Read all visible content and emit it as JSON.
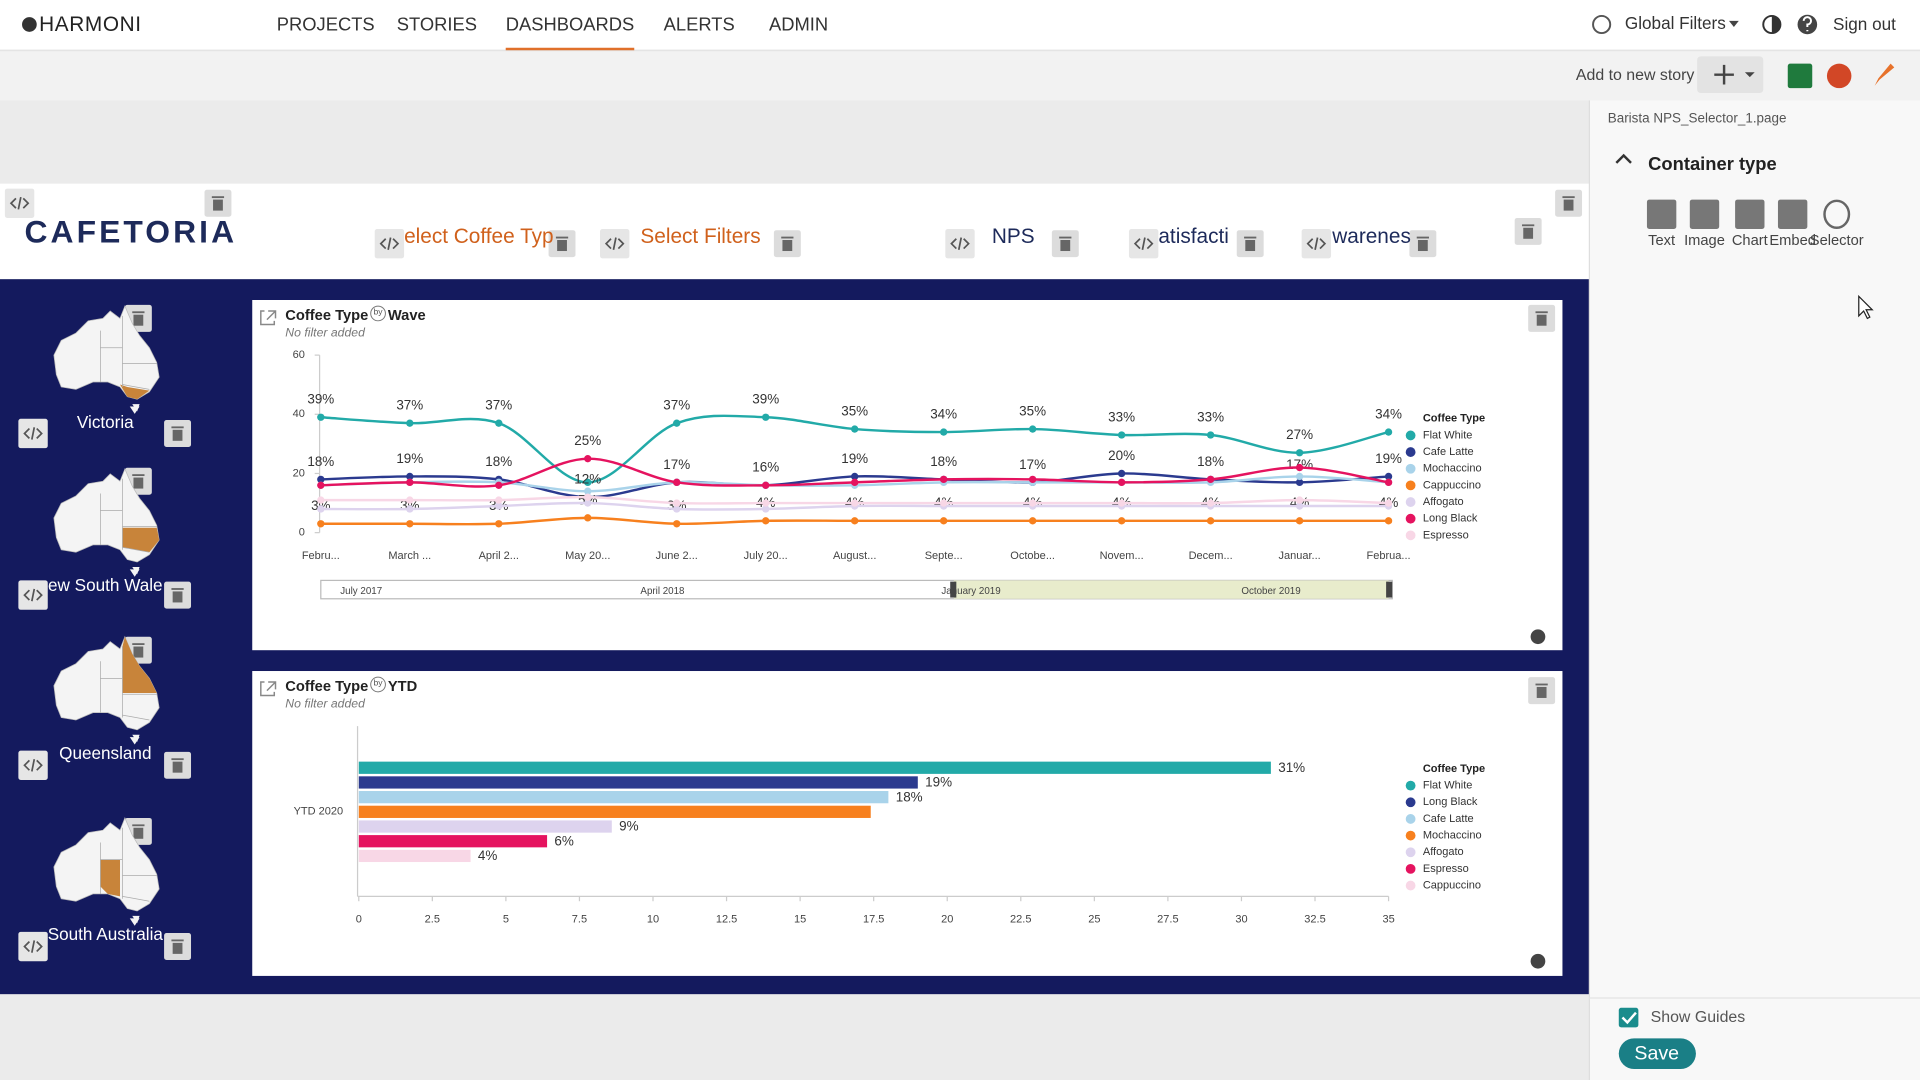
{
  "nav": {
    "brand": "HARMONI",
    "items": [
      "PROJECTS",
      "STORIES",
      "DASHBOARDS",
      "ALERTS",
      "ADMIN"
    ],
    "active": 2,
    "global_filters": "Global Filters",
    "sign_out": "Sign out"
  },
  "toolbar": {
    "add_to_story": "Add to new story"
  },
  "side_panel": {
    "page_name": "Barista NPS_Selector_1.page",
    "section_title": "Container type",
    "container_types": [
      "Text",
      "Image",
      "Chart",
      "Embed",
      "Selector"
    ],
    "show_guides": "Show Guides",
    "save": "Save"
  },
  "dashboard": {
    "logo": "CAFETORIA",
    "selectors": [
      "elect Coffee Typ",
      "Select Filters",
      "NPS",
      "atisfacti",
      "warenes"
    ],
    "regions": [
      "Victoria",
      "ew South Wale",
      "Queensland",
      "South Australia"
    ]
  },
  "chart_data": [
    {
      "type": "line",
      "title": "Coffee Type",
      "by": "by",
      "breakdown": "Wave",
      "subtitle": "No filter added",
      "categories": [
        "Febru...",
        "March ...",
        "April 2...",
        "May 20...",
        "June 2...",
        "July 20...",
        "August...",
        "Septe...",
        "Octobe...",
        "Novem...",
        "Decem...",
        "Januar...",
        "Februa..."
      ],
      "ylim": [
        0,
        60
      ],
      "yticks": [
        0,
        20,
        40,
        60
      ],
      "legend_title": "Coffee Type",
      "legend": "right",
      "navigator_labels": [
        "July 2017",
        "April 2018",
        "January 2019",
        "October 2019"
      ],
      "series": [
        {
          "name": "Flat White",
          "color": "#22aaa8",
          "values": [
            39,
            37,
            37,
            17,
            37,
            39,
            35,
            34,
            35,
            33,
            33,
            27,
            34
          ],
          "value_labels": [
            "39%",
            "37%",
            "37%",
            null,
            "37%",
            "39%",
            "35%",
            "34%",
            "35%",
            "33%",
            "33%",
            "27%",
            "34%"
          ]
        },
        {
          "name": "Cafe Latte",
          "color": "#2b3a8f",
          "values": [
            18,
            19,
            18,
            12,
            17,
            16,
            19,
            18,
            17,
            20,
            18,
            17,
            19
          ],
          "value_labels": [
            "18%",
            "19%",
            "18%",
            "12%",
            "17%",
            "16%",
            "19%",
            "18%",
            "17%",
            "20%",
            "18%",
            "17%",
            "19%"
          ]
        },
        {
          "name": "Mochaccino",
          "color": "#a9d3ea",
          "values": [
            16,
            17,
            17,
            14,
            17,
            16,
            16,
            17,
            17,
            17,
            17,
            19,
            17
          ]
        },
        {
          "name": "Cappuccino",
          "color": "#f7801e",
          "values": [
            3,
            3,
            3,
            5,
            3,
            4,
            4,
            4,
            4,
            4,
            4,
            4,
            4
          ],
          "value_labels": [
            "3%",
            "3%",
            "3%",
            "5%",
            "3%",
            "4%",
            "4%",
            "4%",
            "4%",
            "4%",
            "4%",
            "4%",
            "4%"
          ]
        },
        {
          "name": "Affogato",
          "color": "#ddd3ee",
          "values": [
            8,
            8,
            9,
            10,
            8,
            8,
            9,
            9,
            9,
            9,
            9,
            9,
            9
          ]
        },
        {
          "name": "Long Black",
          "color": "#e5135f",
          "values": [
            16,
            17,
            16,
            25,
            17,
            16,
            17,
            18,
            18,
            17,
            18,
            22,
            17
          ],
          "value_labels": [
            null,
            null,
            null,
            "25%",
            null,
            null,
            null,
            null,
            null,
            null,
            null,
            null,
            null
          ]
        },
        {
          "name": "Espresso",
          "color": "#f8d7e6",
          "values": [
            11,
            11,
            11,
            12,
            10,
            10,
            10,
            10,
            10,
            10,
            10,
            11,
            10
          ]
        }
      ]
    },
    {
      "type": "bar",
      "orientation": "horizontal",
      "title": "Coffee Type",
      "by": "by",
      "breakdown": "YTD",
      "subtitle": "No filter added",
      "categories": [
        "YTD 2020"
      ],
      "xlim": [
        0,
        35
      ],
      "xticks": [
        0,
        2.5,
        5,
        7.5,
        10,
        12.5,
        15,
        17.5,
        20,
        22.5,
        25,
        27.5,
        30,
        32.5,
        35
      ],
      "legend_title": "Coffee Type",
      "legend": "right",
      "series": [
        {
          "name": "Flat White",
          "color": "#22aaa8",
          "values": [
            31
          ],
          "value_labels": [
            "31%"
          ]
        },
        {
          "name": "Long Black",
          "color": "#2b3a8f",
          "values": [
            19
          ],
          "value_labels": [
            "19%"
          ]
        },
        {
          "name": "Cafe Latte",
          "color": "#a9d3ea",
          "values": [
            18
          ],
          "value_labels": [
            "18%"
          ]
        },
        {
          "name": "Mochaccino",
          "color": "#f7801e",
          "values": [
            17.4
          ]
        },
        {
          "name": "Affogato",
          "color": "#ddd3ee",
          "values": [
            8.6
          ],
          "value_labels": [
            "9%"
          ]
        },
        {
          "name": "Espresso",
          "color": "#e5135f",
          "values": [
            6.4
          ],
          "value_labels": [
            "6%"
          ]
        },
        {
          "name": "Cappuccino",
          "color": "#f8d7e6",
          "values": [
            3.8
          ],
          "value_labels": [
            "4%"
          ]
        }
      ]
    }
  ]
}
